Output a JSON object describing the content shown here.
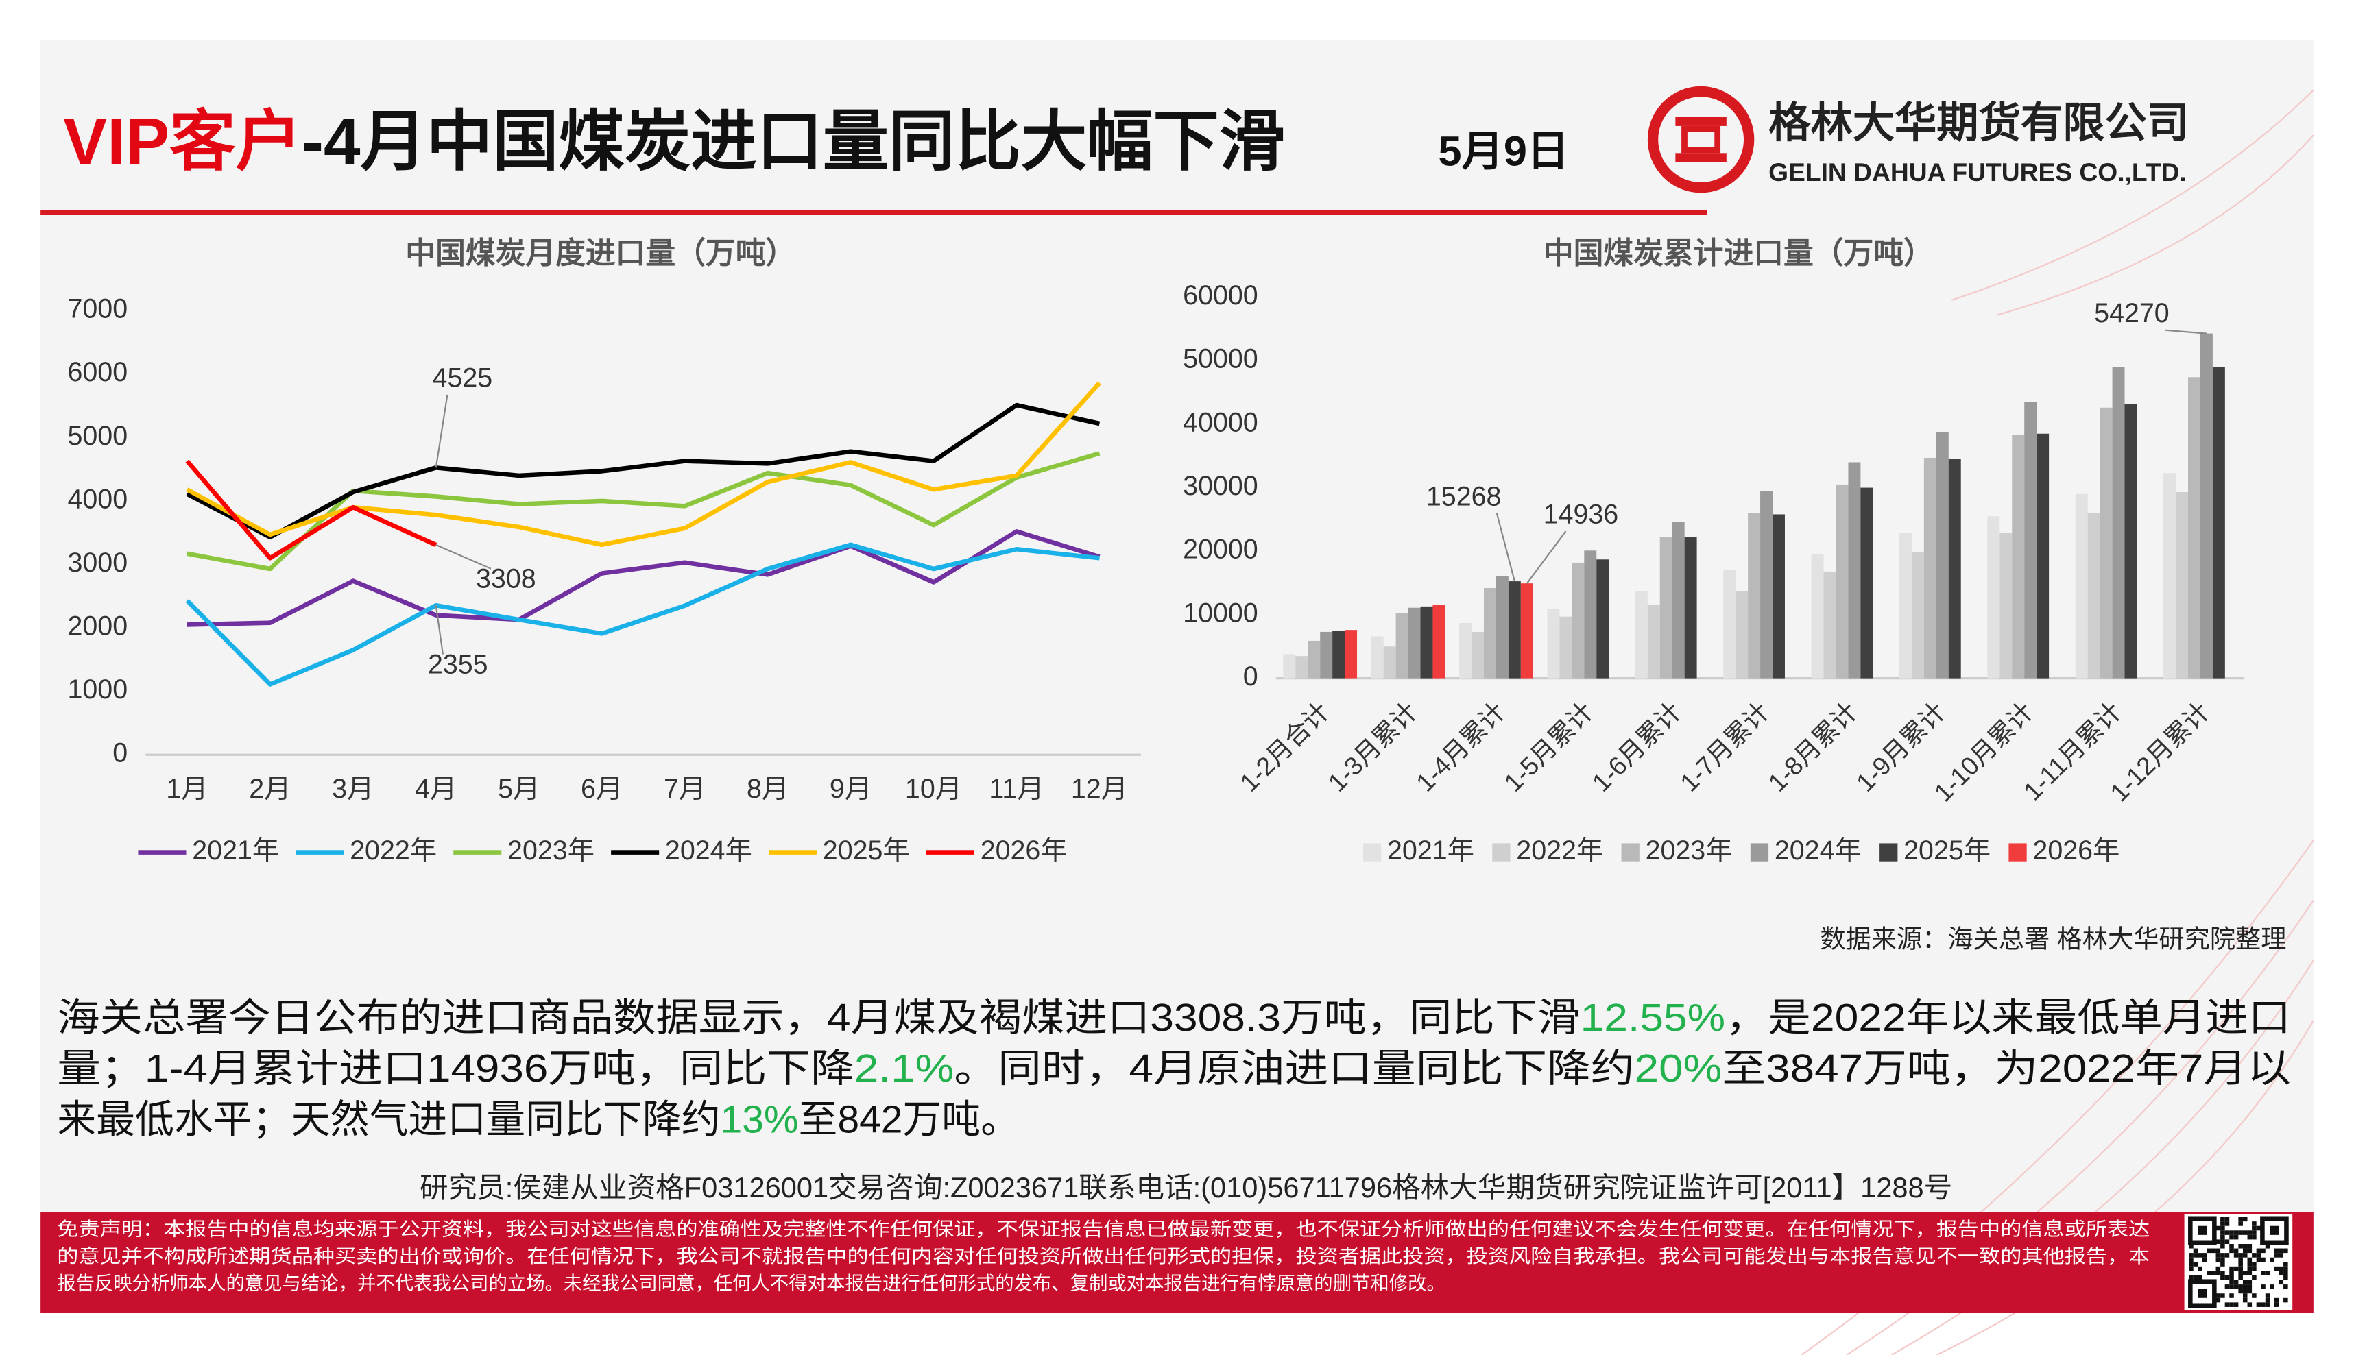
{
  "header": {
    "title_vip": "VIP客户",
    "title_main": "-4月中国煤炭进口量同比大幅下滑",
    "date": "5月9日",
    "company_cn": "格林大华期货有限公司",
    "company_en": "GELIN DAHUA FUTURES CO.,LTD."
  },
  "chart_data": [
    {
      "type": "line",
      "title": "中国煤炭月度进口量（万吨）",
      "categories": [
        "1月",
        "2月",
        "3月",
        "4月",
        "5月",
        "6月",
        "7月",
        "8月",
        "9月",
        "10月",
        "11月",
        "12月"
      ],
      "ylim": [
        0,
        7000
      ],
      "yticks": [
        0,
        1000,
        2000,
        3000,
        4000,
        5000,
        6000,
        7000
      ],
      "grid": false,
      "legend": "bottom",
      "series": [
        {
          "name": "2021年",
          "color": "#7030a0",
          "values": [
            2050,
            2080,
            2740,
            2200,
            2130,
            2860,
            3030,
            2840,
            3290,
            2720,
            3520,
            3120
          ]
        },
        {
          "name": "2022年",
          "color": "#1ab0e8",
          "values": [
            2430,
            1110,
            1650,
            2355,
            2130,
            1910,
            2350,
            2930,
            3310,
            2930,
            3240,
            3100
          ]
        },
        {
          "name": "2023年",
          "color": "#8cc63f",
          "values": [
            3170,
            2930,
            4160,
            4070,
            3950,
            4000,
            3920,
            4440,
            4250,
            3620,
            4370,
            4750
          ]
        },
        {
          "name": "2024年",
          "color": "#000000",
          "values": [
            4110,
            3430,
            4140,
            4525,
            4400,
            4470,
            4630,
            4590,
            4780,
            4630,
            5510,
            5220
          ]
        },
        {
          "name": "2025年",
          "color": "#ffc000",
          "values": [
            4180,
            3470,
            3900,
            3780,
            3590,
            3310,
            3570,
            4300,
            4610,
            4180,
            4400,
            5860
          ]
        },
        {
          "name": "2026年",
          "color": "#ff0000",
          "values": [
            4630,
            3100,
            3900,
            3308,
            null,
            null,
            null,
            null,
            null,
            null,
            null,
            null
          ]
        }
      ]
    },
    {
      "type": "bar",
      "title": "中国煤炭累计进口量（万吨）",
      "categories": [
        "1-2月合计",
        "1-3月累计",
        "1-4月累计",
        "1-5月累计",
        "1-6月累计",
        "1-7月累计",
        "1-8月累计",
        "1-9月累计",
        "1-10月累计",
        "1-11月累计",
        "1-12月累计"
      ],
      "ylim": [
        0,
        60000
      ],
      "yticks": [
        0,
        10000,
        20000,
        30000,
        40000,
        50000,
        60000
      ],
      "grid": false,
      "legend": "bottom",
      "series": [
        {
          "name": "2021年",
          "color": "#e2e2e2",
          "values": [
            3800,
            6600,
            8700,
            10900,
            13700,
            17000,
            19600,
            22900,
            25500,
            29000,
            32300
          ]
        },
        {
          "name": "2022年",
          "color": "#cfcfcf",
          "values": [
            3500,
            5000,
            7300,
            9700,
            11600,
            13700,
            16800,
            19900,
            22900,
            26000,
            29300
          ]
        },
        {
          "name": "2023年",
          "color": "#b9b9b9",
          "values": [
            5900,
            10200,
            14200,
            18200,
            22200,
            26000,
            30500,
            34700,
            38300,
            42600,
            47400
          ]
        },
        {
          "name": "2024年",
          "color": "#9a9a9a",
          "values": [
            7300,
            11100,
            16100,
            20100,
            24600,
            29500,
            34000,
            38800,
            43500,
            49000,
            54270
          ]
        },
        {
          "name": "2025年",
          "color": "#404040",
          "values": [
            7500,
            11300,
            15268,
            18700,
            22200,
            25800,
            30000,
            34500,
            38500,
            43200,
            49000
          ]
        },
        {
          "name": "2026年",
          "color": "#f03c3c",
          "values": [
            7600,
            11500,
            14936,
            null,
            null,
            null,
            null,
            null,
            null,
            null,
            null
          ]
        }
      ]
    }
  ],
  "source": "数据来源：海关总署 格林大华研究院整理",
  "body": {
    "highlight_color": "#22b14c",
    "lines": [
      [
        {
          "text": "海关总署今日公布的进口商品数据显示，4月煤及褐煤进口3308.3万吨，同比下滑"
        },
        {
          "text": "12.55%",
          "highlight": true
        },
        {
          "text": "，是2022年以来最低单月进口"
        }
      ],
      [
        {
          "text": "量；1-4月累计进口14936万吨，同比下降"
        },
        {
          "text": "2.1%",
          "highlight": true
        },
        {
          "text": "。同时，4月原油进口量同比下降约"
        },
        {
          "text": "20%",
          "highlight": true
        },
        {
          "text": "至3847万吨，为2022年7月以"
        }
      ],
      [
        {
          "text": "来最低水平；天然气进口量同比下降约"
        },
        {
          "text": "13%",
          "highlight": true
        },
        {
          "text": "至842万吨。"
        }
      ]
    ]
  },
  "researcher": "研究员:侯建从业资格F03126001交易咨询:Z0023671联系电话:(010)56711796格林大华期货研究院证监许可[2011】1288号",
  "disclaimer": [
    "免责声明：本报告中的信息均来源于公开资料，我公司对这些信息的准确性及完整性不作任何保证，不保证报告信息已做最新变更，也不保证分析师做出的任何建议不会发生任何变更。在任何情况下，报告中的信息或所表达",
    "的意见并不构成所述期货品种买卖的出价或询价。在任何情况下，我公司不就报告中的任何内容对任何投资所做出任何形式的担保，投资者据此投资，投资风险自我承担。我公司可能发出与本报告意见不一致的其他报告，本",
    "报告反映分析师本人的意见与结论，并不代表我公司的立场。未经我公司同意，任何人不得对本报告进行任何形式的发布、复制或对本报告进行有悖原意的删节和修改。"
  ]
}
